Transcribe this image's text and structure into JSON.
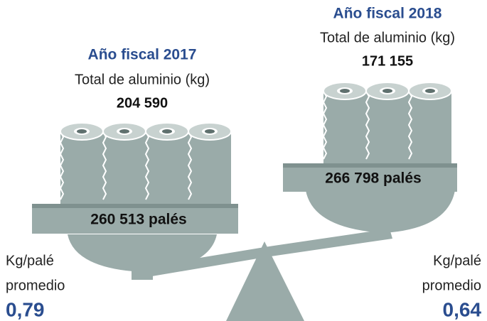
{
  "left": {
    "title": "Año fiscal 2017",
    "subtitle": "Total de aluminio (kg)",
    "total": "204 590",
    "pallets": "260 513 palés",
    "avg_label_1": "Kg/palé",
    "avg_label_2": "promedio",
    "avg": "0,79"
  },
  "right": {
    "title": "Año fiscal 2018",
    "subtitle": "Total de aluminio (kg)",
    "total": "171 155",
    "pallets": "266 798 palés",
    "avg_label_1": "Kg/palé",
    "avg_label_2": "promedio",
    "avg": "0,64"
  }
}
